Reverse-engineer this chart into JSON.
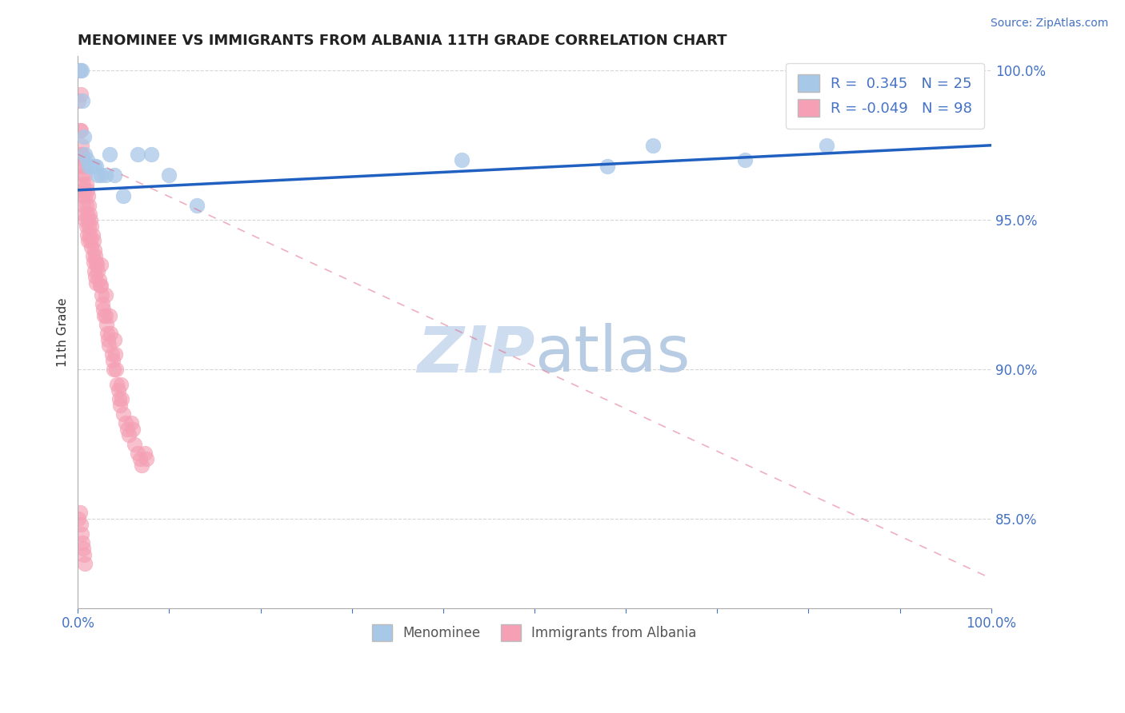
{
  "title": "MENOMINEE VS IMMIGRANTS FROM ALBANIA 11TH GRADE CORRELATION CHART",
  "source_text": "Source: ZipAtlas.com",
  "ylabel": "11th Grade",
  "xlim": [
    0.0,
    1.0
  ],
  "ylim": [
    0.82,
    1.005
  ],
  "yticks_right": [
    0.85,
    0.9,
    0.95,
    1.0
  ],
  "ytick_right_labels": [
    "85.0%",
    "90.0%",
    "95.0%",
    "100.0%"
  ],
  "xticks": [
    0.0,
    0.1,
    0.2,
    0.3,
    0.4,
    0.5,
    0.6,
    0.7,
    0.8,
    0.9,
    1.0
  ],
  "xtick_labels": [
    "0.0%",
    "",
    "",
    "",
    "",
    "",
    "",
    "",
    "",
    "",
    "100.0%"
  ],
  "grid_color": "#cccccc",
  "background_color": "#ffffff",
  "menominee_color": "#a8c8e8",
  "albania_color": "#f5a0b5",
  "menominee_R": 0.345,
  "menominee_N": 25,
  "albania_R": -0.049,
  "albania_N": 98,
  "menominee_line_color": "#2060c0",
  "albania_line_color": "#e06080",
  "menominee_line_x0": 0.0,
  "menominee_line_y0": 0.96,
  "menominee_line_x1": 1.0,
  "menominee_line_y1": 0.975,
  "albania_line_x0": 0.0,
  "albania_line_y0": 0.972,
  "albania_line_x1": 1.0,
  "albania_line_y1": 0.83,
  "watermark_zip": "ZIP",
  "watermark_atlas": "atlas",
  "watermark_color": "#cddcee",
  "menominee_scatter_x": [
    0.002,
    0.004,
    0.005,
    0.007,
    0.008,
    0.01,
    0.012,
    0.015,
    0.018,
    0.02,
    0.022,
    0.025,
    0.03,
    0.035,
    0.04,
    0.05,
    0.065,
    0.08,
    0.1,
    0.13,
    0.42,
    0.58,
    0.63,
    0.73,
    0.82
  ],
  "menominee_scatter_y": [
    1.0,
    1.0,
    0.99,
    0.978,
    0.972,
    0.97,
    0.968,
    0.968,
    0.968,
    0.968,
    0.965,
    0.965,
    0.965,
    0.972,
    0.965,
    0.958,
    0.972,
    0.972,
    0.965,
    0.955,
    0.97,
    0.968,
    0.975,
    0.97,
    0.975
  ],
  "albania_scatter_x": [
    0.001,
    0.002,
    0.002,
    0.003,
    0.003,
    0.003,
    0.004,
    0.004,
    0.004,
    0.005,
    0.005,
    0.005,
    0.006,
    0.006,
    0.006,
    0.007,
    0.007,
    0.007,
    0.008,
    0.008,
    0.008,
    0.009,
    0.009,
    0.009,
    0.01,
    0.01,
    0.01,
    0.011,
    0.011,
    0.011,
    0.012,
    0.012,
    0.013,
    0.013,
    0.014,
    0.014,
    0.015,
    0.015,
    0.016,
    0.016,
    0.017,
    0.017,
    0.018,
    0.018,
    0.019,
    0.019,
    0.02,
    0.02,
    0.021,
    0.022,
    0.023,
    0.024,
    0.025,
    0.025,
    0.026,
    0.027,
    0.028,
    0.029,
    0.03,
    0.03,
    0.031,
    0.032,
    0.033,
    0.034,
    0.035,
    0.036,
    0.037,
    0.038,
    0.039,
    0.04,
    0.041,
    0.042,
    0.043,
    0.044,
    0.045,
    0.046,
    0.047,
    0.048,
    0.05,
    0.052,
    0.054,
    0.056,
    0.058,
    0.06,
    0.062,
    0.065,
    0.068,
    0.07,
    0.073,
    0.075,
    0.001,
    0.002,
    0.003,
    0.004,
    0.005,
    0.006,
    0.007,
    0.008
  ],
  "albania_scatter_y": [
    0.99,
    1.0,
    0.98,
    0.992,
    0.98,
    0.972,
    0.975,
    0.968,
    0.96,
    0.972,
    0.965,
    0.958,
    0.97,
    0.962,
    0.955,
    0.968,
    0.96,
    0.952,
    0.965,
    0.958,
    0.95,
    0.962,
    0.955,
    0.948,
    0.96,
    0.952,
    0.945,
    0.958,
    0.95,
    0.943,
    0.955,
    0.948,
    0.952,
    0.945,
    0.95,
    0.943,
    0.948,
    0.941,
    0.945,
    0.938,
    0.943,
    0.936,
    0.94,
    0.933,
    0.938,
    0.931,
    0.936,
    0.929,
    0.935,
    0.933,
    0.93,
    0.928,
    0.935,
    0.928,
    0.925,
    0.922,
    0.92,
    0.918,
    0.925,
    0.918,
    0.915,
    0.912,
    0.91,
    0.908,
    0.918,
    0.912,
    0.905,
    0.903,
    0.9,
    0.91,
    0.905,
    0.9,
    0.895,
    0.893,
    0.89,
    0.888,
    0.895,
    0.89,
    0.885,
    0.882,
    0.88,
    0.878,
    0.882,
    0.88,
    0.875,
    0.872,
    0.87,
    0.868,
    0.872,
    0.87,
    0.85,
    0.852,
    0.848,
    0.845,
    0.842,
    0.84,
    0.838,
    0.835
  ]
}
